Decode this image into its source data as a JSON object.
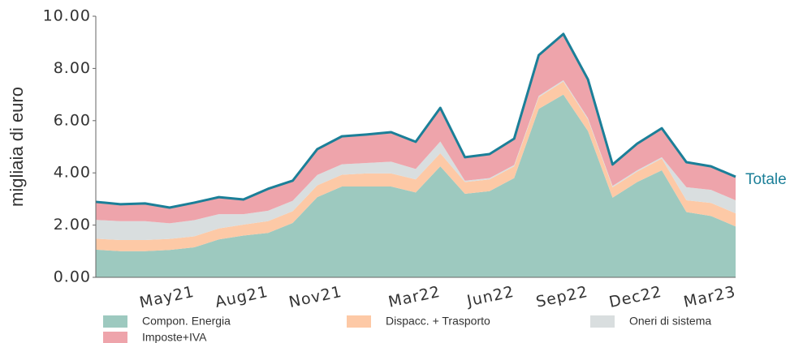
{
  "chart_data": {
    "type": "stacked_area",
    "y_label": "migliaia di euro",
    "annotation": "Totale",
    "categories": [
      null,
      null,
      null,
      null,
      "May21",
      null,
      null,
      "Aug21",
      null,
      null,
      "Nov21",
      null,
      null,
      null,
      "Mar22",
      null,
      null,
      "Jun22",
      null,
      null,
      "Sep22",
      null,
      null,
      "Dec22",
      null,
      null,
      "Mar23"
    ],
    "series": [
      {
        "name": "Compon. Energia",
        "color": "#9dc9bf",
        "values": [
          1.06,
          1.0,
          1.0,
          1.05,
          1.15,
          1.45,
          1.6,
          1.7,
          2.08,
          3.07,
          3.48,
          3.48,
          3.48,
          3.25,
          4.25,
          3.2,
          3.3,
          3.8,
          6.45,
          7.0,
          5.6,
          3.05,
          3.65,
          4.1,
          2.5,
          2.35,
          1.95
        ]
      },
      {
        "name": "Dispacc. + Trasporto",
        "color": "#fdc9a6",
        "values": [
          0.42,
          0.43,
          0.43,
          0.42,
          0.42,
          0.42,
          0.42,
          0.45,
          0.45,
          0.45,
          0.45,
          0.5,
          0.5,
          0.5,
          0.5,
          0.45,
          0.45,
          0.45,
          0.45,
          0.5,
          0.45,
          0.4,
          0.4,
          0.45,
          0.45,
          0.5,
          0.5
        ]
      },
      {
        "name": "Oneri di sistema",
        "color": "#d9dedf",
        "values": [
          0.72,
          0.72,
          0.72,
          0.6,
          0.62,
          0.55,
          0.4,
          0.4,
          0.4,
          0.4,
          0.4,
          0.4,
          0.45,
          0.4,
          0.45,
          0.05,
          0.05,
          0.05,
          0.05,
          0.05,
          0.05,
          0.05,
          0.05,
          0.05,
          0.5,
          0.5,
          0.5
        ]
      },
      {
        "name": "Imposte+IVA",
        "color": "#eea4ab",
        "values": [
          0.69,
          0.65,
          0.68,
          0.6,
          0.67,
          0.65,
          0.56,
          0.84,
          0.77,
          0.99,
          1.07,
          1.09,
          1.13,
          1.04,
          1.29,
          0.9,
          0.92,
          1.01,
          1.56,
          1.77,
          1.48,
          0.82,
          1.02,
          1.11,
          0.96,
          0.9,
          0.9
        ]
      }
    ],
    "total_color": "#1b7f98",
    "ylim": [
      0,
      10
    ],
    "yticks": [
      {
        "value": 0,
        "label": "0.00"
      },
      {
        "value": 2,
        "label": "2.00"
      },
      {
        "value": 4,
        "label": "4.00"
      },
      {
        "value": 6,
        "label": "6.00"
      },
      {
        "value": 8,
        "label": "8.00"
      },
      {
        "value": 10,
        "label": "10.00"
      }
    ]
  }
}
